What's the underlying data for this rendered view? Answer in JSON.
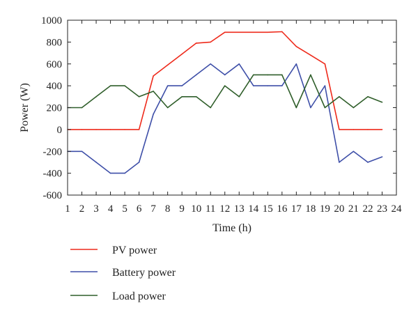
{
  "chart_data": {
    "type": "line",
    "title": "",
    "xlabel": "Time (h)",
    "ylabel": "Power (W)",
    "xlim": [
      1,
      24
    ],
    "ylim": [
      -600,
      1000
    ],
    "x_ticks": [
      1,
      2,
      3,
      4,
      5,
      6,
      7,
      8,
      9,
      10,
      11,
      12,
      13,
      14,
      15,
      16,
      17,
      18,
      19,
      20,
      21,
      22,
      23,
      24
    ],
    "y_ticks": [
      -600,
      -400,
      -200,
      0,
      200,
      400,
      600,
      800,
      1000
    ],
    "grid": false,
    "legend_position": "bottom-left",
    "x": [
      1,
      2,
      3,
      4,
      5,
      6,
      7,
      8,
      9,
      10,
      11,
      12,
      13,
      14,
      15,
      16,
      17,
      18,
      19,
      20,
      21,
      22,
      23
    ],
    "series": [
      {
        "name": "PV power",
        "color": "#ee2a1b",
        "values": [
          0,
          0,
          0,
          0,
          0,
          0,
          490,
          590,
          690,
          790,
          800,
          890,
          890,
          890,
          890,
          895,
          760,
          680,
          600,
          0,
          0,
          0,
          0
        ]
      },
      {
        "name": "Battery power",
        "color": "#3e4fa8",
        "values": [
          -200,
          -200,
          -300,
          -400,
          -400,
          -300,
          140,
          400,
          400,
          500,
          600,
          500,
          600,
          400,
          400,
          400,
          600,
          200,
          400,
          -300,
          -200,
          -300,
          -250
        ]
      },
      {
        "name": "Load power",
        "color": "#2f5e2a",
        "values": [
          200,
          200,
          300,
          400,
          400,
          300,
          350,
          200,
          300,
          300,
          200,
          400,
          300,
          500,
          500,
          500,
          200,
          500,
          200,
          300,
          200,
          300,
          250
        ]
      }
    ]
  }
}
